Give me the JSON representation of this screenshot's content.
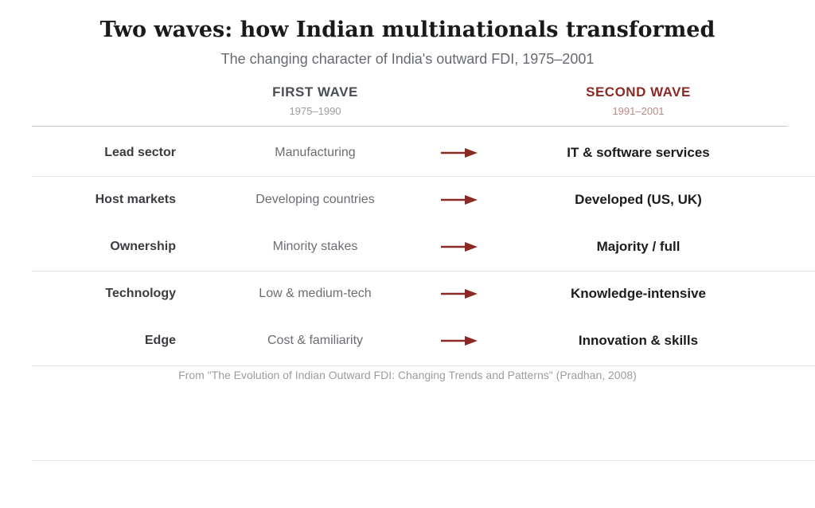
{
  "title": "Two waves: how Indian multinationals transformed",
  "subtitle": "The changing character of India's outward FDI, 1975–2001",
  "columns": {
    "first": {
      "name": "FIRST WAVE",
      "years": "1975–1990"
    },
    "second": {
      "name": "SECOND WAVE",
      "years": "1991–2001"
    }
  },
  "rows": [
    {
      "label": "Lead sector",
      "first": "Manufacturing",
      "second": "IT & software services"
    },
    {
      "label": "Host markets",
      "first": "Developing countries",
      "second": "Developed (US, UK)"
    },
    {
      "label": "Ownership",
      "first": "Minority stakes",
      "second": "Majority / full"
    },
    {
      "label": "Technology",
      "first": "Low & medium-tech",
      "second": "Knowledge-intensive"
    },
    {
      "label": "Edge",
      "first": "Cost & familiarity",
      "second": "Innovation & skills"
    }
  ],
  "source": "From \"The Evolution of Indian Outward FDI: Changing Trends and Patterns\" (Pradhan, 2008)",
  "colors": {
    "accent": "#8b2a24",
    "first_wave": "#4a4d52"
  },
  "icons": {
    "arrow": "right-arrow-icon"
  }
}
